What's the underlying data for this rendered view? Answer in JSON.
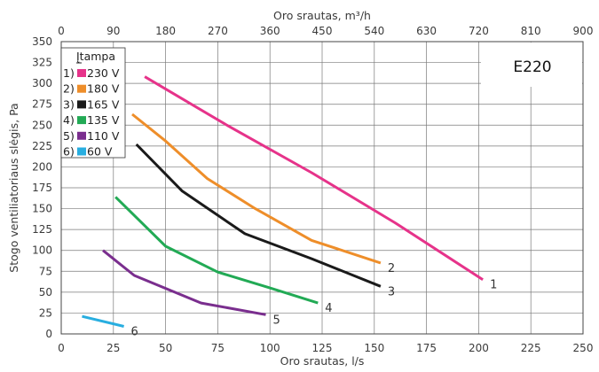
{
  "chart_data": {
    "type": "line",
    "model": "E220",
    "xlabel": "Oro srautas, l/s",
    "x2label": "Oro srautas, m³/h",
    "ylabel": "Stogo ventiliatoriaus slėgis, Pa",
    "xlim": [
      0,
      250
    ],
    "x2lim": [
      0,
      900
    ],
    "ylim": [
      0,
      350
    ],
    "x_ticks": [
      "0",
      "25",
      "50",
      "75",
      "100",
      "125",
      "150",
      "175",
      "200",
      "225",
      "250"
    ],
    "x2_ticks": [
      "0",
      "90",
      "180",
      "270",
      "360",
      "450",
      "540",
      "630",
      "720",
      "810",
      "900"
    ],
    "y_ticks": [
      "0",
      "25",
      "50",
      "75",
      "100",
      "125",
      "150",
      "175",
      "200",
      "225",
      "250",
      "275",
      "300",
      "325",
      "350"
    ],
    "grid": true,
    "legend": {
      "title": "Įtampa",
      "placement": "top-left",
      "entries": [
        {
          "num": "1)",
          "label": "230 V"
        },
        {
          "num": "2)",
          "label": "180 V"
        },
        {
          "num": "3)",
          "label": "165 V"
        },
        {
          "num": "4)",
          "label": "135 V"
        },
        {
          "num": "5)",
          "label": "110 V"
        },
        {
          "num": "6)",
          "label": " 60 V"
        }
      ]
    },
    "series": [
      {
        "label": "1",
        "color": "#e6338a",
        "points": [
          [
            40,
            308
          ],
          [
            80,
            249
          ],
          [
            120,
            193
          ],
          [
            160,
            133
          ],
          [
            202,
            65
          ]
        ]
      },
      {
        "label": "2",
        "color": "#ee8e2a",
        "points": [
          [
            34,
            263
          ],
          [
            50,
            231
          ],
          [
            70,
            186
          ],
          [
            93,
            150
          ],
          [
            120,
            112
          ],
          [
            153,
            85
          ]
        ]
      },
      {
        "label": "3",
        "color": "#1a1a1a",
        "points": [
          [
            36,
            227
          ],
          [
            58,
            171
          ],
          [
            88,
            120
          ],
          [
            120,
            90
          ],
          [
            153,
            57
          ]
        ]
      },
      {
        "label": "4",
        "color": "#22aa55",
        "points": [
          [
            26,
            164
          ],
          [
            50,
            105
          ],
          [
            75,
            74
          ],
          [
            100,
            55
          ],
          [
            123,
            37
          ]
        ]
      },
      {
        "label": "5",
        "color": "#7a2e8e",
        "points": [
          [
            20,
            100
          ],
          [
            35,
            70
          ],
          [
            67,
            37
          ],
          [
            98,
            23
          ]
        ]
      },
      {
        "label": "6",
        "color": "#28aee0",
        "points": [
          [
            10,
            21
          ],
          [
            30,
            9
          ]
        ]
      }
    ]
  }
}
